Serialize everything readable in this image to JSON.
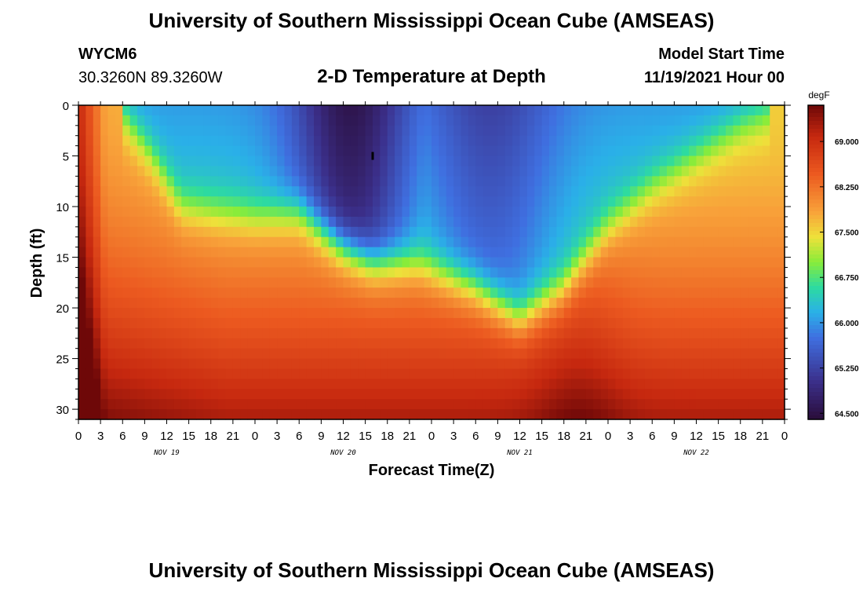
{
  "header": {
    "title": "University of Southern Mississippi Ocean Cube (AMSEAS)",
    "station": "WYCM6",
    "coords": "30.3260N  89.3260W",
    "subtitle": "2-D Temperature at Depth",
    "model_label": "Model Start Time",
    "model_time": "11/19/2021 Hour 00"
  },
  "footer": {
    "title": "University of Southern Mississippi Ocean Cube (AMSEAS)"
  },
  "chart_data": {
    "type": "heatmap",
    "xlabel": "Forecast Time(Z)",
    "ylabel": "Depth (ft)",
    "x_unit": "hours from model start",
    "x_range": [
      0,
      96
    ],
    "x_tick_labels": [
      "0",
      "3",
      "6",
      "9",
      "12",
      "15",
      "18",
      "21",
      "0",
      "3",
      "6",
      "9",
      "12",
      "15",
      "18",
      "21",
      "0",
      "3",
      "6",
      "9",
      "12",
      "15",
      "18",
      "21",
      "0",
      "3",
      "6",
      "9",
      "12",
      "15",
      "18",
      "21",
      "0"
    ],
    "day_labels": [
      "NOV 19",
      "NOV 20",
      "NOV 21",
      "NOV 22"
    ],
    "y_range": [
      0,
      31
    ],
    "y_ticks": [
      0,
      5,
      10,
      15,
      20,
      25,
      30
    ],
    "y_reversed": true,
    "colorbar": {
      "unit": "degF",
      "range": [
        64.4,
        69.6
      ],
      "tick_values": [
        69.0,
        68.25,
        67.5,
        66.75,
        66.0,
        65.25,
        64.5
      ],
      "tick_labels": [
        "69.000",
        "68.250",
        "67.500",
        "66.750",
        "66.000",
        "65.250",
        "64.500"
      ]
    },
    "grid": false,
    "marker": {
      "hour": 40,
      "depth": 5
    },
    "cold_layer_boundary": {
      "note": "approximate bottom depth (ft) of the cold (<66 degF) layer vs forecast hour",
      "hours": [
        0,
        5,
        10,
        14,
        18,
        24,
        30,
        36,
        40,
        46,
        54,
        60,
        66,
        72,
        78,
        84,
        90,
        96
      ],
      "depth_ft": [
        0,
        0,
        5,
        10,
        10.5,
        11,
        10.5,
        14,
        15.5,
        15.5,
        18,
        21,
        18,
        12,
        8,
        5,
        2,
        0
      ]
    }
  }
}
